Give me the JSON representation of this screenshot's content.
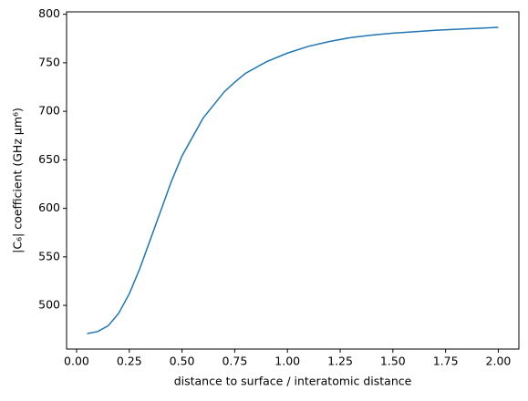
{
  "chart_data": {
    "type": "line",
    "xlabel": "distance to surface / interatomic distance",
    "ylabel": "|C₆| coefficient (GHz μm⁶)",
    "x": [
      0.05,
      0.1,
      0.15,
      0.2,
      0.25,
      0.3,
      0.35,
      0.4,
      0.45,
      0.5,
      0.6,
      0.7,
      0.75,
      0.8,
      0.9,
      1.0,
      1.1,
      1.2,
      1.3,
      1.4,
      1.5,
      1.6,
      1.7,
      1.8,
      1.9,
      2.0
    ],
    "series": [
      {
        "color": "#1f77b4",
        "values": [
          471,
          473,
          479,
          492,
          512,
          538,
          568,
          598,
          628,
          654,
          693,
          720,
          730,
          739,
          751,
          760,
          767,
          772,
          776,
          778.5,
          780.5,
          782,
          783.5,
          784.5,
          785.5,
          786.5
        ]
      }
    ],
    "xlim": [
      -0.0475,
      2.0975
    ],
    "ylim": [
      455,
      802.5
    ],
    "xticks": [
      {
        "value": 0,
        "label": "0.00"
      },
      {
        "value": 0.25,
        "label": "0.25"
      },
      {
        "value": 0.5,
        "label": "0.50"
      },
      {
        "value": 0.75,
        "label": "0.75"
      },
      {
        "value": 1,
        "label": "1.00"
      },
      {
        "value": 1.25,
        "label": "1.25"
      },
      {
        "value": 1.5,
        "label": "1.50"
      },
      {
        "value": 1.75,
        "label": "1.75"
      },
      {
        "value": 2,
        "label": "2.00"
      }
    ],
    "yticks": [
      500,
      550,
      600,
      650,
      700,
      750,
      800
    ]
  }
}
